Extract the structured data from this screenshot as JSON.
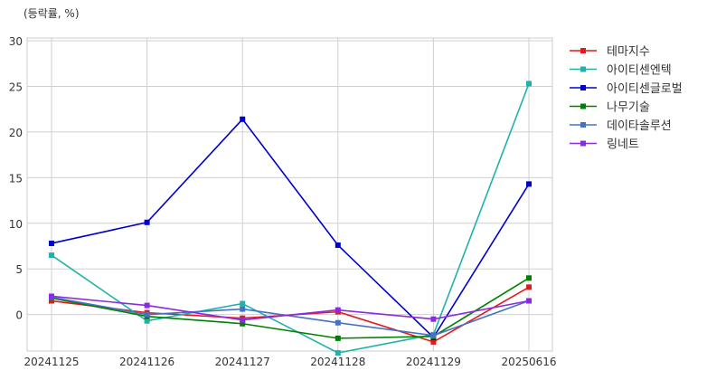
{
  "chart_data": {
    "type": "line",
    "unit_label": "(등락률, %)",
    "categories": [
      "20241125",
      "20241126",
      "20241127",
      "20241128",
      "20241129",
      "20250616"
    ],
    "y_ticks": [
      0,
      5,
      10,
      15,
      20,
      25,
      30
    ],
    "ylim": [
      -4,
      30.3
    ],
    "grid": true,
    "legend_position": "right",
    "series": [
      {
        "name": "테마지수",
        "color": "#e31a1c",
        "values": [
          1.5,
          0.2,
          -0.4,
          0.3,
          -3.0,
          3.0
        ]
      },
      {
        "name": "아이티센엔텍",
        "color": "#20b2aa",
        "values": [
          6.5,
          -0.7,
          1.2,
          -4.2,
          -2.2,
          25.3
        ]
      },
      {
        "name": "아이티센글로벌",
        "color": "#0000cd",
        "values": [
          7.8,
          10.1,
          21.4,
          7.6,
          -2.5,
          14.3
        ]
      },
      {
        "name": "나무기술",
        "color": "#008000",
        "values": [
          1.8,
          -0.2,
          -1.0,
          -2.6,
          -2.4,
          4.0
        ]
      },
      {
        "name": "데이타솔루션",
        "color": "#4472c4",
        "values": [
          1.9,
          0.0,
          0.6,
          -0.9,
          -2.3,
          1.5
        ]
      },
      {
        "name": "링네트",
        "color": "#8a2be2",
        "values": [
          2.0,
          1.0,
          -0.6,
          0.5,
          -0.5,
          1.5
        ]
      }
    ]
  }
}
